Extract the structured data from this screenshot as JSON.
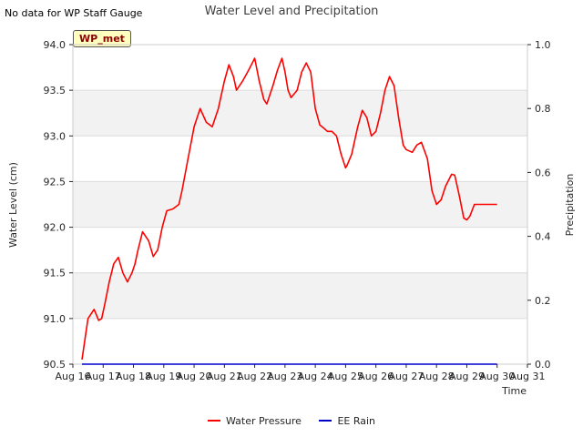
{
  "note": "No data for WP Staff Gauge",
  "badge": "WP_met",
  "chart_data": {
    "type": "line",
    "title": "Water Level and Precipitation",
    "xlabel": "Time",
    "ylabel": "Water Level (cm)",
    "ylabel_right": "Precipitation",
    "ylim": [
      90.5,
      94.0
    ],
    "ylim_right": [
      0.0,
      1.0
    ],
    "xlim": [
      16,
      31
    ],
    "x_ticks": [
      "Aug 16",
      "Aug 17",
      "Aug 18",
      "Aug 19",
      "Aug 20",
      "Aug 21",
      "Aug 22",
      "Aug 23",
      "Aug 24",
      "Aug 25",
      "Aug 26",
      "Aug 27",
      "Aug 28",
      "Aug 29",
      "Aug 30",
      "Aug 31"
    ],
    "y_ticks": [
      "90.5",
      "91.0",
      "91.5",
      "92.0",
      "92.5",
      "93.0",
      "93.5",
      "94.0"
    ],
    "y_ticks_right": [
      "0.0",
      "0.2",
      "0.4",
      "0.6",
      "0.8",
      "1.0"
    ],
    "grid": true,
    "legend_position": "bottom-center",
    "series": [
      {
        "name": "Water Pressure",
        "color": "#ff0000",
        "axis": "left",
        "x": [
          16.3,
          16.5,
          16.7,
          16.85,
          16.95,
          17.05,
          17.2,
          17.35,
          17.5,
          17.65,
          17.8,
          17.95,
          18.05,
          18.15,
          18.3,
          18.5,
          18.65,
          18.8,
          18.95,
          19.1,
          19.3,
          19.5,
          19.6,
          19.8,
          20.0,
          20.2,
          20.4,
          20.6,
          20.8,
          21.0,
          21.15,
          21.3,
          21.4,
          21.6,
          21.8,
          22.0,
          22.15,
          22.3,
          22.4,
          22.6,
          22.75,
          22.9,
          23.0,
          23.1,
          23.2,
          23.4,
          23.55,
          23.7,
          23.85,
          24.0,
          24.15,
          24.3,
          24.4,
          24.55,
          24.7,
          24.85,
          25.0,
          25.05,
          25.2,
          25.4,
          25.55,
          25.7,
          25.85,
          26.0,
          26.15,
          26.3,
          26.45,
          26.6,
          26.75,
          26.9,
          27.0,
          27.2,
          27.35,
          27.5,
          27.7,
          27.85,
          28.0,
          28.15,
          28.3,
          28.5,
          28.6,
          28.75,
          28.9,
          29.0,
          29.1,
          29.25,
          29.4,
          29.55,
          29.7,
          29.8,
          29.9,
          30.0
        ],
        "values": [
          90.55,
          91.0,
          91.1,
          90.98,
          91.0,
          91.15,
          91.4,
          91.6,
          91.67,
          91.5,
          91.4,
          91.5,
          91.6,
          91.75,
          91.95,
          91.85,
          91.68,
          91.75,
          92.0,
          92.18,
          92.2,
          92.25,
          92.4,
          92.75,
          93.1,
          93.3,
          93.15,
          93.1,
          93.3,
          93.6,
          93.78,
          93.65,
          93.5,
          93.6,
          93.72,
          93.85,
          93.6,
          93.4,
          93.35,
          93.55,
          93.72,
          93.85,
          93.7,
          93.5,
          93.42,
          93.5,
          93.7,
          93.8,
          93.7,
          93.3,
          93.12,
          93.08,
          93.05,
          93.05,
          93.0,
          92.8,
          92.65,
          92.68,
          92.8,
          93.1,
          93.28,
          93.2,
          93.0,
          93.05,
          93.25,
          93.5,
          93.65,
          93.55,
          93.2,
          92.9,
          92.85,
          92.82,
          92.9,
          92.93,
          92.75,
          92.4,
          92.25,
          92.3,
          92.45,
          92.58,
          92.57,
          92.35,
          92.1,
          92.08,
          92.12,
          92.25,
          92.25,
          92.25,
          92.25,
          92.25,
          92.25,
          92.25
        ]
      },
      {
        "name": "EE Rain",
        "color": "#0000cc",
        "axis": "right",
        "x": [
          16.3,
          30.0
        ],
        "values": [
          0.0,
          0.0
        ]
      }
    ]
  }
}
